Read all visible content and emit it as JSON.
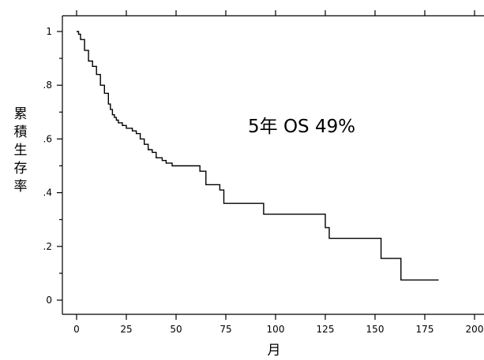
{
  "chart_data": {
    "type": "line",
    "step": true,
    "title": "",
    "xlabel": "月",
    "ylabel": "累積生存率",
    "xlim": [
      0,
      200
    ],
    "ylim": [
      0,
      1
    ],
    "x_ticks": [
      0,
      25,
      50,
      75,
      100,
      125,
      150,
      175,
      200
    ],
    "x_tick_labels": [
      "0",
      "25",
      "50",
      "75",
      "100",
      "125",
      "150",
      "175",
      "200"
    ],
    "y_ticks": [
      0,
      0.2,
      0.4,
      0.6,
      0.8,
      1
    ],
    "y_tick_labels": [
      "0",
      ".2",
      ".4",
      ".6",
      ".8",
      "1"
    ],
    "grid": false,
    "annotation": "5年 OS 49%",
    "series": [
      {
        "x": [
          0,
          1,
          2,
          4,
          6,
          8,
          10,
          12,
          14,
          16,
          17,
          18,
          19,
          20,
          21,
          23,
          25,
          28,
          30,
          32,
          34,
          36,
          38,
          40,
          43,
          45,
          48,
          62,
          65,
          72,
          74,
          94,
          125,
          127,
          153,
          163,
          182
        ],
        "y": [
          1.0,
          0.99,
          0.97,
          0.93,
          0.89,
          0.87,
          0.84,
          0.8,
          0.77,
          0.73,
          0.71,
          0.69,
          0.68,
          0.67,
          0.66,
          0.65,
          0.64,
          0.63,
          0.62,
          0.6,
          0.58,
          0.56,
          0.55,
          0.53,
          0.52,
          0.51,
          0.5,
          0.48,
          0.43,
          0.41,
          0.36,
          0.32,
          0.27,
          0.23,
          0.155,
          0.075,
          0.075
        ]
      }
    ]
  }
}
